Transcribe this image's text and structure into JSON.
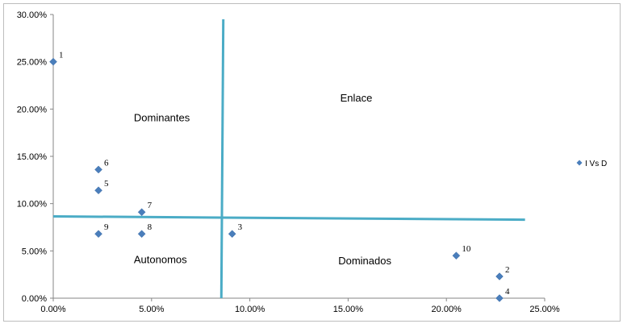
{
  "chart_data": {
    "type": "scatter",
    "title": "",
    "xlabel": "",
    "ylabel": "",
    "xlim": [
      0,
      0.25
    ],
    "ylim": [
      0,
      0.3
    ],
    "x_ticks": [
      "0.00%",
      "5.00%",
      "10.00%",
      "15.00%",
      "20.00%",
      "25.00%"
    ],
    "y_ticks": [
      "0.00%",
      "5.00%",
      "10.00%",
      "15.00%",
      "20.00%",
      "25.00%",
      "30.00%"
    ],
    "grid": false,
    "legend_position": "right",
    "series": [
      {
        "name": "I Vs D",
        "color": "#4a7ebb",
        "marker": "diamond",
        "points": [
          {
            "label": "1",
            "x": 0.0,
            "y": 0.25
          },
          {
            "label": "2",
            "x": 0.227,
            "y": 0.023
          },
          {
            "label": "3",
            "x": 0.091,
            "y": 0.068
          },
          {
            "label": "4",
            "x": 0.227,
            "y": 0.0
          },
          {
            "label": "5",
            "x": 0.023,
            "y": 0.114
          },
          {
            "label": "6",
            "x": 0.023,
            "y": 0.136
          },
          {
            "label": "7",
            "x": 0.045,
            "y": 0.091
          },
          {
            "label": "8",
            "x": 0.045,
            "y": 0.068
          },
          {
            "label": "9",
            "x": 0.023,
            "y": 0.068
          },
          {
            "label": "10",
            "x": 0.205,
            "y": 0.045
          }
        ]
      }
    ],
    "quadrant_lines": {
      "color": "#4bacc6",
      "vertical": {
        "x_top": 0.0865,
        "y_top": 0.295,
        "x_bottom": 0.0855,
        "y_bottom": 0.0
      },
      "horizontal": {
        "x_left": 0.0,
        "y_left": 0.0865,
        "x_right": 0.24,
        "y_right": 0.083
      }
    },
    "annotations": [
      {
        "text": "Enlace",
        "x": 0.146,
        "y": 0.208
      },
      {
        "text": "Dominantes",
        "x": 0.041,
        "y": 0.187
      },
      {
        "text": "Autonomos",
        "x": 0.041,
        "y": 0.037
      },
      {
        "text": "Dominados",
        "x": 0.145,
        "y": 0.036
      }
    ]
  }
}
